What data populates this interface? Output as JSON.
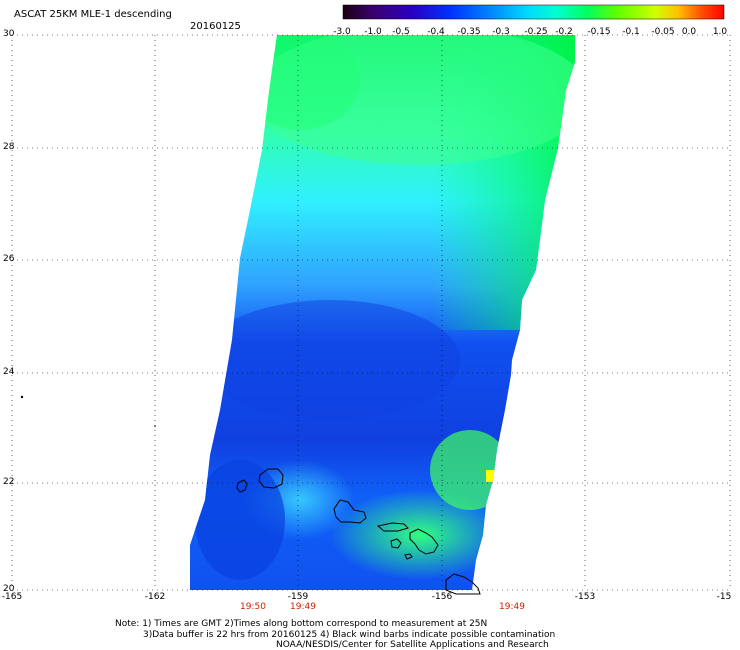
{
  "header": {
    "title": "ASCAT 25KM MLE-1 descending",
    "date": "20160125"
  },
  "colorbar": {
    "labels": [
      "-3.0",
      "-1.0",
      "-0.5",
      "-0.4",
      "-0.35",
      "-0.3",
      "-0.25",
      "-0.2",
      "-0.15",
      "-0.1",
      "-0.05",
      "0.0",
      "1.0"
    ],
    "colors": [
      "#1a0010",
      "#3a0070",
      "#2a00c0",
      "#0030ff",
      "#0090ff",
      "#00d8ff",
      "#00ffd0",
      "#00ff60",
      "#60ff00",
      "#d0ff00",
      "#ffc000",
      "#ff5000",
      "#ff0000"
    ]
  },
  "map": {
    "lat_labels": [
      "30",
      "28",
      "26",
      "24",
      "22",
      "20"
    ],
    "lon_labels": [
      "-165",
      "-162",
      "-159",
      "-156",
      "-153",
      "-15"
    ],
    "time_labels": [
      "19:50",
      "19:49",
      "19:49"
    ]
  },
  "notes": [
    "Note: 1) Times are GMT 2)Times along bottom correspond to measurement at 25N",
    "3)Data buffer is 22 hrs from 20160125 4) Black wind barbs indicate possible contamination",
    "NOAA/NESDIS/Center for Satellite Applications and Research"
  ]
}
